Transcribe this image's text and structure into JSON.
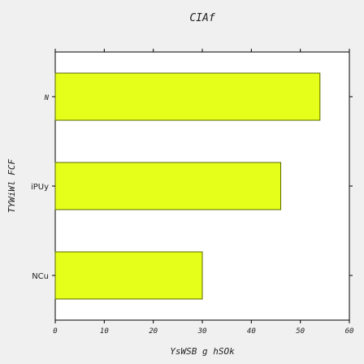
{
  "chart_data": {
    "type": "bar",
    "orientation": "horizontal",
    "title": "CIAf",
    "xlabel": "YsWSB g hSOk",
    "ylabel": "TYWiWl FCF",
    "categories": [
      "NCu",
      "iPUy",
      "N"
    ],
    "values": [
      30,
      46,
      54
    ],
    "xlim": [
      0,
      60
    ],
    "xticks": [
      0,
      10,
      20,
      30,
      40,
      50,
      60
    ],
    "bar_color": "#e6ff1a",
    "bar_edge_color": "#5a6a00",
    "grid": false,
    "legend": "none"
  }
}
